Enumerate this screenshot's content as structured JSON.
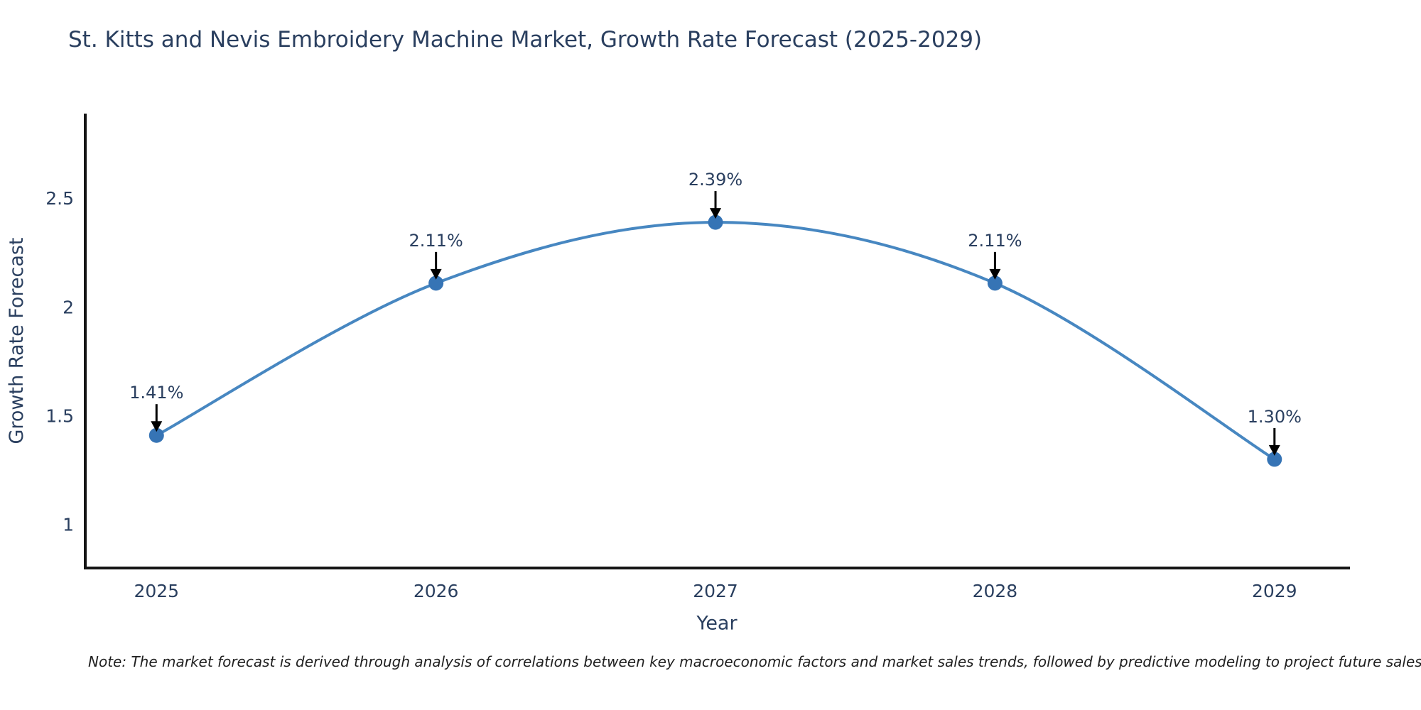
{
  "page": {
    "note": "Note: The market forecast is derived through analysis of correlations between key macroeconomic factors and market sales trends, followed by predictive modeling to project future sales"
  },
  "chart_data": {
    "type": "line",
    "title": "St. Kitts and Nevis Embroidery Machine Market, Growth Rate Forecast (2025-2029)",
    "xlabel": "Year",
    "ylabel": "Growth Rate Forecast",
    "x": [
      2025,
      2026,
      2027,
      2028,
      2029
    ],
    "values": [
      1.41,
      2.11,
      2.39,
      2.11,
      1.3
    ],
    "point_labels": [
      "1.41%",
      "2.11%",
      "2.39%",
      "2.11%",
      "1.30%"
    ],
    "xtick_labels": [
      "2025",
      "2026",
      "2027",
      "2028",
      "2029"
    ],
    "yticks": [
      1,
      1.5,
      2,
      2.5
    ],
    "ytick_labels": [
      "1",
      "1.5",
      "2",
      "2.5"
    ],
    "xlim": [
      2024.74,
      2029.27
    ],
    "ylim": [
      0.8,
      2.89
    ],
    "line_shape": "spline",
    "grid": false,
    "legend_position": "none",
    "annotation_style": "label-above-with-down-arrow",
    "colors": {
      "line": "#4787c1",
      "marker": "#3674b5",
      "arrow": "#000000",
      "title_text": "#2a3f5f",
      "tick_text": "#2a3f5f",
      "axis_text": "#2a3f5f",
      "annotation_text": "#2a3f5f",
      "axis_line": "#151515",
      "note_text": "#1f1f1f",
      "background": "#ffffff"
    }
  }
}
